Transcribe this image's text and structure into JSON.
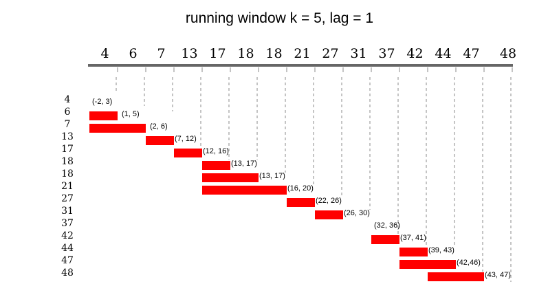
{
  "title": "running window k = 5, lag = 1",
  "colors": {
    "bar": "#ff0000",
    "axis": "#666666",
    "dash": "#888888"
  },
  "axis_ticks": [
    "4",
    "6",
    "7",
    "13",
    "17",
    "18",
    "18",
    "21",
    "27",
    "31",
    "37",
    "42",
    "44",
    "47",
    "48"
  ],
  "rows": [
    {
      "value": "4",
      "label": "(-2, 3)",
      "start": 0,
      "end": 0
    },
    {
      "value": "6",
      "label": "(1, 5)",
      "start": 0,
      "end": 1
    },
    {
      "value": "7",
      "label": "(2, 6)",
      "start": 0,
      "end": 2
    },
    {
      "value": "13",
      "label": "(7, 12)",
      "start": 2,
      "end": 3
    },
    {
      "value": "17",
      "label": "(12, 16)",
      "start": 3,
      "end": 4
    },
    {
      "value": "18",
      "label": "(13, 17)",
      "start": 4,
      "end": 5
    },
    {
      "value": "18",
      "label": "(13, 17)",
      "start": 4,
      "end": 6
    },
    {
      "value": "21",
      "label": "(16, 20)",
      "start": 4,
      "end": 7
    },
    {
      "value": "27",
      "label": "(22, 26)",
      "start": 7,
      "end": 8
    },
    {
      "value": "31",
      "label": "(26, 30)",
      "start": 8,
      "end": 9
    },
    {
      "value": "37",
      "label": "(32, 36)",
      "start": 10,
      "end": 10
    },
    {
      "value": "42",
      "label": "(37, 41)",
      "start": 10,
      "end": 11
    },
    {
      "value": "44",
      "label": "(39, 43)",
      "start": 11,
      "end": 12
    },
    {
      "value": "47",
      "label": "(42,46)",
      "start": 11,
      "end": 13
    },
    {
      "value": "48",
      "label": "(43, 47)",
      "start": 12,
      "end": 14
    }
  ]
}
